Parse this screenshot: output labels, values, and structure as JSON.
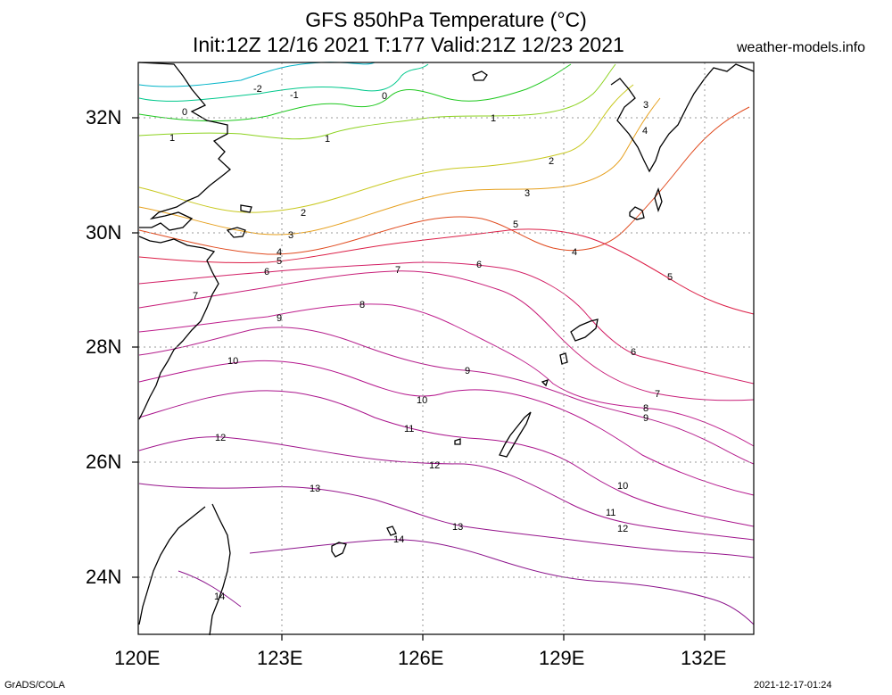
{
  "title": {
    "line1": "GFS 850hPa Temperature (°C)",
    "line2": "Init:12Z 12/16 2021 T:177 Valid:21Z 12/23 2021"
  },
  "source": "weather-models.info",
  "footer": {
    "left": "GrADS/COLA",
    "right": "2021-12-17-01:24"
  },
  "axes": {
    "lat_labels": [
      "32N",
      "30N",
      "28N",
      "26N",
      "24N"
    ],
    "lon_labels": [
      "120E",
      "123E",
      "126E",
      "129E",
      "132E"
    ]
  },
  "contours": {
    "labels": [
      "-2",
      "-1",
      "0",
      "0",
      "1",
      "1",
      "1",
      "2",
      "2",
      "3",
      "3",
      "3",
      "4",
      "4",
      "4",
      "5",
      "5",
      "5",
      "6",
      "6",
      "6",
      "7",
      "7",
      "7",
      "8",
      "8",
      "9",
      "9",
      "9",
      "10",
      "10",
      "10",
      "11",
      "11",
      "12",
      "12",
      "12",
      "13",
      "13",
      "14",
      "14"
    ]
  }
}
